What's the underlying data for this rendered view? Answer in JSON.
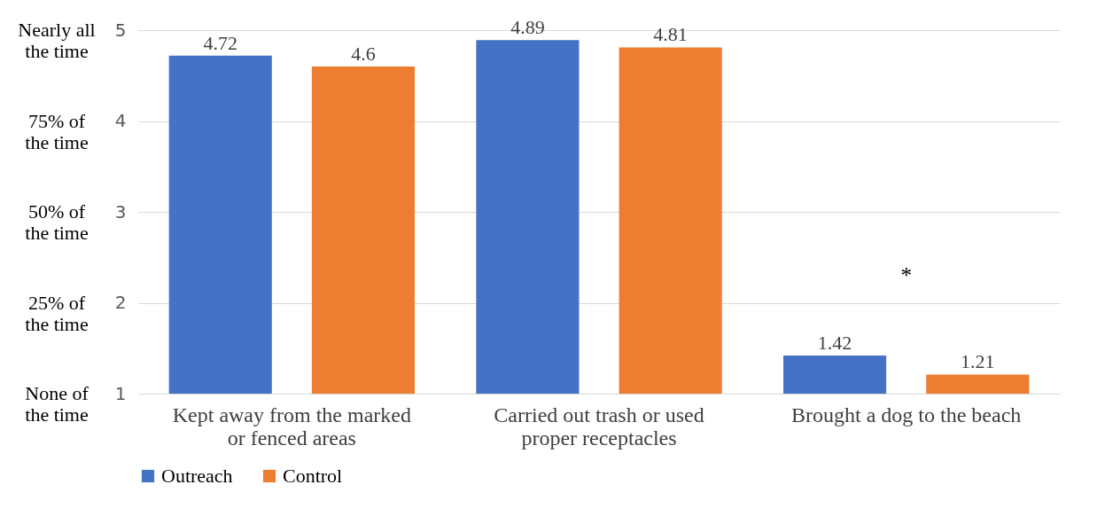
{
  "chart_data": {
    "type": "bar",
    "categories": [
      "Kept away from the marked or fenced areas",
      "Carried out trash or used proper receptacles",
      "Brought a dog to the beach"
    ],
    "series": [
      {
        "name": "Outreach",
        "color": "#4472c4",
        "values": [
          4.72,
          4.89,
          1.42
        ]
      },
      {
        "name": "Control",
        "color": "#ed7d31",
        "values": [
          4.6,
          4.81,
          1.21
        ]
      }
    ],
    "ylim": [
      1,
      5
    ],
    "yticks": [
      1,
      2,
      3,
      4,
      5
    ],
    "grid": "y",
    "legend": "bottom",
    "data_labels": true,
    "annotations": [
      "Nearly all the time",
      "75% of the time",
      "50% of the time",
      "25% of the time",
      "None of the time",
      "*"
    ]
  }
}
